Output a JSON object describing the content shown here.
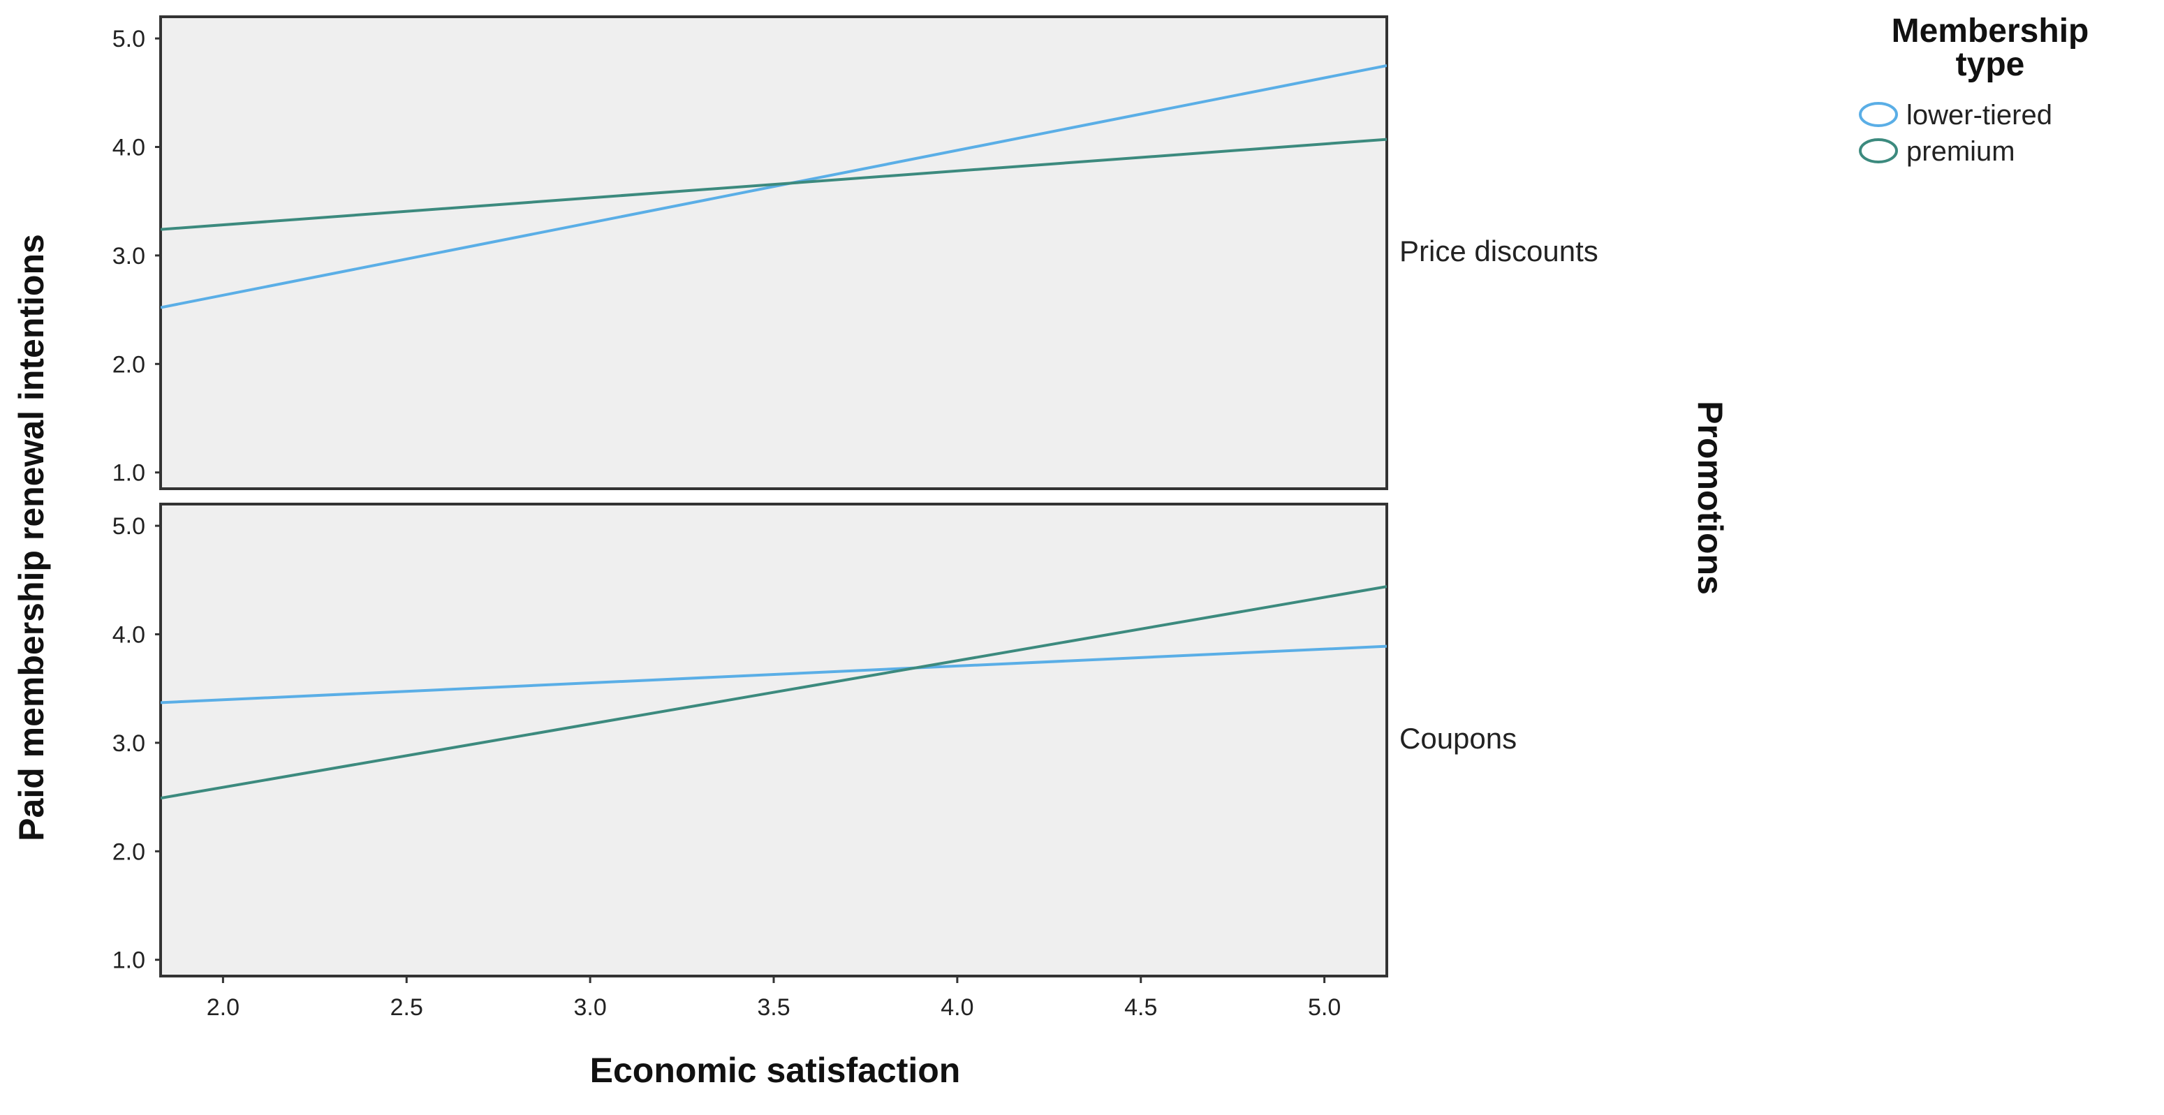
{
  "chart_data": {
    "type": "line",
    "xlabel": "Economic satisfaction",
    "ylabel": "Paid membership renewal intentions",
    "facet_title": "Promotions",
    "xlim": [
      1.83,
      5.17
    ],
    "ylim": [
      0.85,
      5.2
    ],
    "x_ticks": [
      "2.0",
      "2.5",
      "3.0",
      "3.5",
      "4.0",
      "4.5",
      "5.0"
    ],
    "y_ticks": [
      "1.0",
      "2.0",
      "3.0",
      "4.0",
      "5.0"
    ],
    "grid": false,
    "legend": {
      "title_lines": [
        "Membership",
        "type"
      ],
      "position": "top-right",
      "entries": [
        {
          "label": "lower-tiered",
          "color": "#5aaee6"
        },
        {
          "label": "premium",
          "color": "#3c8a7e"
        }
      ]
    },
    "panels": [
      {
        "label": "Price discounts",
        "series": [
          {
            "name": "lower-tiered",
            "x": [
              1.83,
              5.17
            ],
            "y": [
              2.52,
              4.75
            ]
          },
          {
            "name": "premium",
            "x": [
              1.83,
              5.17
            ],
            "y": [
              3.24,
              4.07
            ]
          }
        ]
      },
      {
        "label": "Coupons",
        "series": [
          {
            "name": "lower-tiered",
            "x": [
              1.83,
              5.17
            ],
            "y": [
              3.37,
              3.89
            ]
          },
          {
            "name": "premium",
            "x": [
              1.83,
              5.17
            ],
            "y": [
              2.49,
              4.44
            ]
          }
        ]
      }
    ]
  },
  "colors": {
    "panel_background": "#efefef",
    "panel_border": "#333333"
  }
}
